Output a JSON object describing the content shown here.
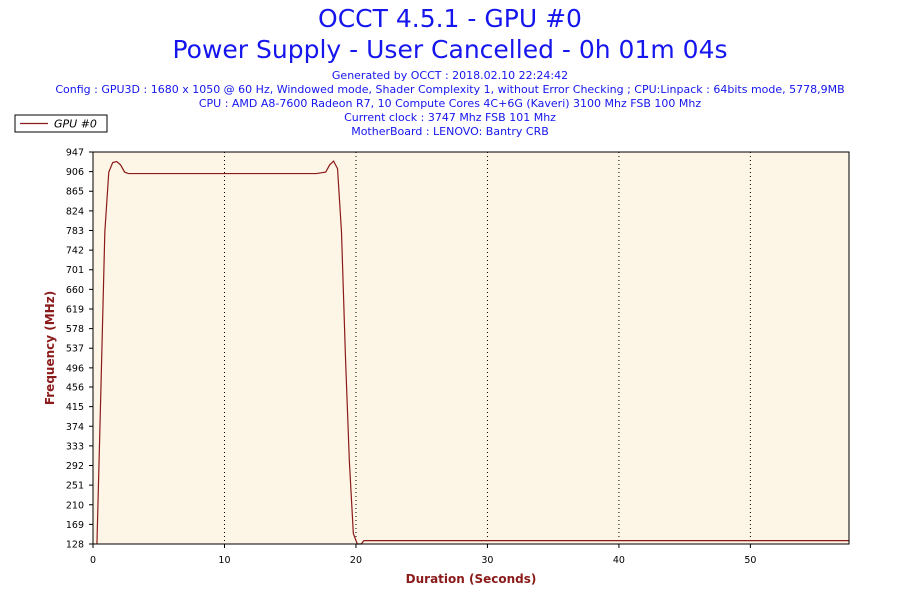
{
  "header": {
    "title": "OCCT 4.5.1 - GPU #0",
    "subtitle": "Power Supply - User Cancelled - 0h 01m 04s",
    "info_lines": [
      "Generated by OCCT : 2018.02.10 22:24:42",
      "Config : GPU3D : 1680 x 1050 @ 60 Hz, Windowed mode, Shader Complexity 1, without Error Checking ; CPU:Linpack : 64bits mode, 5778,9MB",
      "CPU : AMD A8-7600 Radeon R7, 10 Compute Cores 4C+6G (Kaveri) 3100 Mhz FSB 100 Mhz",
      "Current clock : 3747 Mhz FSB 101 Mhz",
      "MotherBoard : LENOVO: Bantry CRB"
    ]
  },
  "colors": {
    "title": "#1515ee",
    "plot_background": "#fdf5e6",
    "series_line": "#8b1a1a",
    "axis_title": "#8b1a1a",
    "grid": "#000000"
  },
  "chart_data": {
    "type": "line",
    "xlabel": "Duration (Seconds)",
    "ylabel": "Frequency (MHz)",
    "xlim": [
      0,
      57.5
    ],
    "ylim": [
      128,
      947
    ],
    "x_ticks": [
      0,
      10,
      20,
      30,
      40,
      50
    ],
    "y_ticks": [
      128,
      169,
      210,
      251,
      292,
      333,
      374,
      415,
      456,
      496,
      537,
      578,
      619,
      660,
      701,
      742,
      783,
      824,
      865,
      906,
      947
    ],
    "grid": "vertical dotted",
    "legend_position": "top-left",
    "series": [
      {
        "name": "GPU #0",
        "x": [
          0.3,
          0.6,
          0.9,
          1.2,
          1.5,
          1.8,
          2.1,
          2.4,
          2.7,
          3,
          5,
          8,
          10,
          12,
          15,
          17,
          17.7,
          18,
          18.3,
          18.6,
          18.9,
          19.2,
          19.5,
          19.8,
          20.1,
          20.4,
          20.6,
          21,
          25,
          30,
          35,
          40,
          45,
          50,
          55,
          57.5
        ],
        "values": [
          128,
          450,
          780,
          905,
          925,
          927,
          920,
          905,
          902,
          902,
          902,
          902,
          902,
          902,
          902,
          902,
          905,
          920,
          928,
          912,
          780,
          520,
          300,
          150,
          128,
          128,
          135,
          135,
          135,
          135,
          135,
          135,
          135,
          135,
          135,
          135
        ]
      }
    ]
  }
}
